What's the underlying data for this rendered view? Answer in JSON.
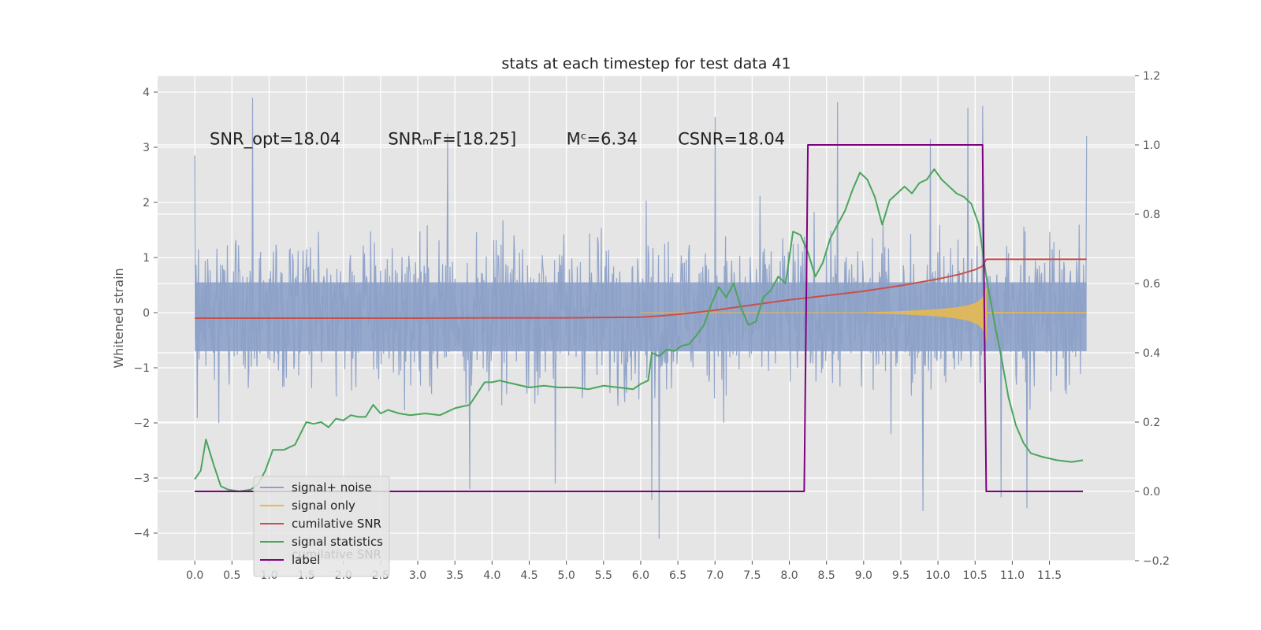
{
  "chart_data": {
    "type": "line",
    "title": "stats at each timestep for test data 41",
    "ylabel": "Whitened strain",
    "y2label": "",
    "xlim": [
      -0.5,
      12.65
    ],
    "ylim": [
      -4.5,
      4.3
    ],
    "y2lim": [
      -0.2,
      1.2
    ],
    "xticks": [
      0.0,
      0.5,
      1.0,
      1.5,
      2.0,
      2.5,
      3.0,
      3.5,
      4.0,
      4.5,
      5.0,
      5.5,
      6.0,
      6.5,
      7.0,
      7.5,
      8.0,
      8.5,
      9.0,
      9.5,
      10.0,
      10.5,
      11.0,
      11.5
    ],
    "xtick_labels": [
      "0.0",
      "0.5",
      "1.0",
      "1.5",
      "2.0",
      "2.5",
      "3.0",
      "3.5",
      "4.0",
      "4.5",
      "5.0",
      "5.5",
      "6.0",
      "6.5",
      "7.0",
      "7.5",
      "8.0",
      "8.5",
      "9.0",
      "9.5",
      "10.0",
      "10.5",
      "11.0",
      "11.5"
    ],
    "yticks": [
      -4,
      -3,
      -2,
      -1,
      0,
      1,
      2,
      3,
      4
    ],
    "ytick_labels": [
      "−4",
      "−3",
      "−2",
      "−1",
      "0",
      "1",
      "2",
      "3",
      "4"
    ],
    "y2ticks": [
      -0.2,
      0.0,
      0.2,
      0.4,
      0.6,
      0.8,
      1.0,
      1.2
    ],
    "y2tick_labels": [
      "−0.2",
      "0.0",
      "0.2",
      "0.4",
      "0.6",
      "0.8",
      "1.0",
      "1.2"
    ],
    "grid": true,
    "legend_position": "lower-left",
    "annotations": [
      {
        "text": "SNR_opt=18.04",
        "x": 0.2,
        "y": 3.05
      },
      {
        "text": "SNRₘF=[18.25]",
        "x": 2.6,
        "y": 3.05
      },
      {
        "text": "Mᶜ=6.34",
        "x": 5.0,
        "y": 3.05
      },
      {
        "text": "CSNR=18.04",
        "x": 6.5,
        "y": 3.05
      }
    ],
    "series": [
      {
        "name": "signal+ noise",
        "color": "#8da1c8",
        "axis": "left",
        "kind": "noise",
        "x_range": [
          0.0,
          12.0
        ],
        "band": [
          -1.9,
          1.9
        ],
        "peaks_high": [
          [
            0.78,
            3.9
          ],
          [
            7.0,
            3.55
          ],
          [
            8.65,
            3.82
          ],
          [
            10.4,
            3.72
          ],
          [
            10.6,
            3.75
          ],
          [
            12.0,
            3.2
          ],
          [
            0.0,
            2.85
          ],
          [
            3.4,
            3.25
          ],
          [
            9.9,
            3.15
          ]
        ],
        "peaks_low": [
          [
            3.7,
            -3.2
          ],
          [
            6.15,
            -3.4
          ],
          [
            6.25,
            -4.1
          ],
          [
            9.8,
            -3.6
          ],
          [
            10.85,
            -3.35
          ],
          [
            11.2,
            -3.55
          ],
          [
            4.85,
            -3.1
          ]
        ]
      },
      {
        "name": "signal only",
        "color": "#e8b94f",
        "axis": "left",
        "kind": "chirp",
        "t_start": 6.0,
        "t_merge": 10.65,
        "t_end": 12.0
      },
      {
        "name": "cumilative SNR",
        "color": "#c8504a",
        "axis": "right",
        "x": [
          0.0,
          1.0,
          2.0,
          3.0,
          4.0,
          5.0,
          5.5,
          6.0,
          6.3,
          6.6,
          7.0,
          7.5,
          8.0,
          8.5,
          9.0,
          9.5,
          10.0,
          10.3,
          10.5,
          10.6,
          10.65,
          11.0,
          12.0
        ],
        "values": [
          0.5,
          0.5,
          0.5,
          0.5,
          0.501,
          0.501,
          0.502,
          0.503,
          0.507,
          0.513,
          0.523,
          0.538,
          0.553,
          0.565,
          0.578,
          0.594,
          0.613,
          0.627,
          0.64,
          0.65,
          0.67,
          0.67,
          0.67
        ]
      },
      {
        "name": "signal statistics",
        "color": "#4aa55c",
        "axis": "right",
        "x": [
          0.0,
          0.08,
          0.15,
          0.25,
          0.35,
          0.45,
          0.6,
          0.75,
          0.85,
          0.95,
          1.05,
          1.2,
          1.35,
          1.5,
          1.6,
          1.7,
          1.8,
          1.9,
          2.0,
          2.1,
          2.2,
          2.3,
          2.4,
          2.5,
          2.6,
          2.75,
          2.9,
          3.1,
          3.3,
          3.5,
          3.7,
          3.9,
          4.0,
          4.1,
          4.3,
          4.5,
          4.7,
          4.9,
          5.1,
          5.3,
          5.5,
          5.7,
          5.9,
          6.0,
          6.1,
          6.15,
          6.25,
          6.35,
          6.45,
          6.55,
          6.65,
          6.75,
          6.85,
          6.95,
          7.05,
          7.15,
          7.25,
          7.35,
          7.45,
          7.55,
          7.65,
          7.75,
          7.85,
          7.95,
          8.05,
          8.15,
          8.25,
          8.35,
          8.45,
          8.55,
          8.65,
          8.75,
          8.85,
          8.95,
          9.05,
          9.15,
          9.25,
          9.35,
          9.45,
          9.55,
          9.65,
          9.75,
          9.85,
          9.95,
          10.05,
          10.15,
          10.25,
          10.35,
          10.45,
          10.55,
          10.65,
          10.75,
          10.85,
          10.95,
          11.05,
          11.15,
          11.25,
          11.4,
          11.6,
          11.8,
          11.95
        ],
        "values": [
          0.035,
          0.06,
          0.15,
          0.08,
          0.015,
          0.005,
          0.0,
          0.005,
          0.02,
          0.06,
          0.12,
          0.12,
          0.135,
          0.2,
          0.195,
          0.2,
          0.185,
          0.21,
          0.205,
          0.22,
          0.215,
          0.215,
          0.25,
          0.225,
          0.235,
          0.225,
          0.22,
          0.225,
          0.22,
          0.24,
          0.25,
          0.315,
          0.315,
          0.32,
          0.31,
          0.3,
          0.305,
          0.3,
          0.3,
          0.295,
          0.305,
          0.3,
          0.295,
          0.31,
          0.32,
          0.4,
          0.39,
          0.41,
          0.405,
          0.42,
          0.425,
          0.45,
          0.48,
          0.54,
          0.59,
          0.56,
          0.6,
          0.53,
          0.48,
          0.49,
          0.56,
          0.58,
          0.62,
          0.6,
          0.75,
          0.74,
          0.69,
          0.62,
          0.66,
          0.73,
          0.77,
          0.81,
          0.87,
          0.92,
          0.9,
          0.85,
          0.77,
          0.84,
          0.86,
          0.88,
          0.86,
          0.89,
          0.9,
          0.93,
          0.9,
          0.88,
          0.86,
          0.85,
          0.83,
          0.77,
          0.62,
          0.5,
          0.39,
          0.27,
          0.19,
          0.14,
          0.11,
          0.1,
          0.09,
          0.085,
          0.09
        ]
      },
      {
        "name": "label",
        "color": "#800080",
        "axis": "right",
        "x": [
          0.0,
          8.2,
          8.25,
          10.6,
          10.65,
          11.95
        ],
        "values": [
          0.0,
          0.0,
          1.0,
          1.0,
          0.0,
          0.0
        ]
      }
    ],
    "legend_overlap_text": "cumilative SNR"
  }
}
